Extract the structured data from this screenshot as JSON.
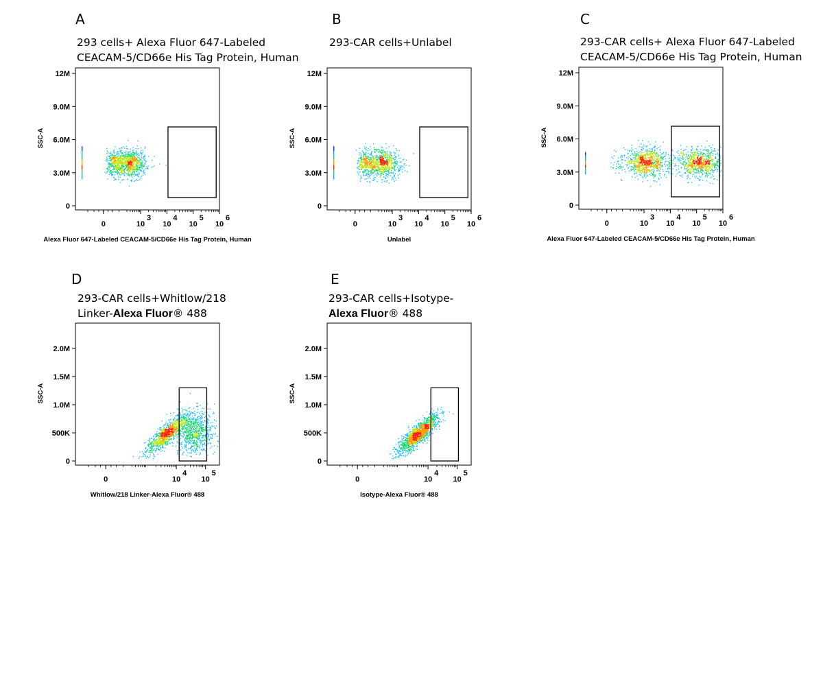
{
  "chart_data": [
    {
      "id": "A",
      "type": "scatter",
      "letter": "A",
      "title": [
        {
          "segments": [
            {
              "text": "293 cells+ Alexa Fluor 647-Labeled"
            }
          ]
        },
        {
          "segments": [
            {
              "text": "CEACAM-5/CD66e His Tag Protein, Human"
            }
          ]
        }
      ],
      "xlabel": "Alexa Fluor 647-Labeled CEACAM-5/CD66e His Tag Protein, Human",
      "ylabel": "SSC-A",
      "xscale": "biexponential",
      "xlim": [
        -300,
        1000000
      ],
      "ylim": [
        0,
        12500000
      ],
      "yticks": [
        {
          "value": 0,
          "label": "0"
        },
        {
          "value": 3000000,
          "label": "3.0M"
        },
        {
          "value": 6000000,
          "label": "6.0M"
        },
        {
          "value": 9000000,
          "label": "9.0M"
        },
        {
          "value": 12000000,
          "label": "12M"
        }
      ],
      "xticks": [
        {
          "value": 0,
          "label": "0",
          "exp": ""
        },
        {
          "value": 1000,
          "label": "10",
          "exp": "3"
        },
        {
          "value": 10000,
          "label": "10",
          "exp": "4"
        },
        {
          "value": 100000,
          "label": "10",
          "exp": "5"
        },
        {
          "value": 1000000,
          "label": "10",
          "exp": "6"
        }
      ],
      "gate": {
        "x": [
          11000,
          750000
        ],
        "y": [
          750000,
          7150000
        ]
      },
      "populations": [
        {
          "x_center": 300,
          "x_spread": 1.6,
          "y_center": 3850000,
          "y_spread": 600000,
          "count": 1100
        }
      ],
      "edge_events": {
        "x_at": 0,
        "y_range": [
          2400000,
          5400000
        ]
      }
    },
    {
      "id": "B",
      "type": "scatter",
      "letter": "B",
      "title": [
        {
          "segments": [
            {
              "text": "293-CAR cells+Unlabel"
            }
          ]
        }
      ],
      "xlabel": "Unlabel",
      "ylabel": "SSC-A",
      "xscale": "biexponential",
      "xlim": [
        -300,
        1000000
      ],
      "ylim": [
        0,
        12500000
      ],
      "yticks": [
        {
          "value": 0,
          "label": "0"
        },
        {
          "value": 3000000,
          "label": "3.0M"
        },
        {
          "value": 6000000,
          "label": "6.0M"
        },
        {
          "value": 9000000,
          "label": "9.0M"
        },
        {
          "value": 12000000,
          "label": "12M"
        }
      ],
      "xticks": [
        {
          "value": 0,
          "label": "0",
          "exp": ""
        },
        {
          "value": 1000,
          "label": "10",
          "exp": "3"
        },
        {
          "value": 10000,
          "label": "10",
          "exp": "4"
        },
        {
          "value": 100000,
          "label": "10",
          "exp": "5"
        },
        {
          "value": 1000000,
          "label": "10",
          "exp": "6"
        }
      ],
      "gate": {
        "x": [
          11000,
          750000
        ],
        "y": [
          750000,
          7150000
        ]
      },
      "populations": [
        {
          "x_center": 330,
          "x_spread": 1.7,
          "y_center": 3850000,
          "y_spread": 650000,
          "count": 1000
        }
      ],
      "edge_events": {
        "x_at": 0,
        "y_range": [
          2400000,
          5400000
        ]
      }
    },
    {
      "id": "C",
      "type": "scatter",
      "letter": "C",
      "title": [
        {
          "segments": [
            {
              "text": "293-CAR  cells+  Alexa  Fluor  647-Labeled"
            }
          ]
        },
        {
          "segments": [
            {
              "text": "CEACAM-5/CD66e His Tag Protein, Human"
            }
          ]
        }
      ],
      "xlabel": "Alexa Fluor 647-Labeled CEACAM-5/CD66e His Tag Protein, Human",
      "ylabel": "SSC-A",
      "xscale": "biexponential",
      "xlim": [
        -300,
        1000000
      ],
      "ylim": [
        0,
        12500000
      ],
      "yticks": [
        {
          "value": 0,
          "label": "0"
        },
        {
          "value": 3000000,
          "label": "3.0M"
        },
        {
          "value": 6000000,
          "label": "6.0M"
        },
        {
          "value": 9000000,
          "label": "9.0M"
        },
        {
          "value": 12000000,
          "label": "12M"
        }
      ],
      "xticks": [
        {
          "value": 0,
          "label": "0",
          "exp": ""
        },
        {
          "value": 1000,
          "label": "10",
          "exp": "3"
        },
        {
          "value": 10000,
          "label": "10",
          "exp": "4"
        },
        {
          "value": 100000,
          "label": "10",
          "exp": "5"
        },
        {
          "value": 1000000,
          "label": "10",
          "exp": "6"
        }
      ],
      "gate": {
        "x": [
          11000,
          750000
        ],
        "y": [
          750000,
          7150000
        ]
      },
      "populations": [
        {
          "x_center": 1200,
          "x_spread": 2.0,
          "y_center": 3900000,
          "y_spread": 650000,
          "count": 900
        },
        {
          "x_center": 130000,
          "x_spread": 1.9,
          "y_center": 3900000,
          "y_spread": 650000,
          "count": 800
        }
      ],
      "edge_events": {
        "x_at": 0,
        "y_range": [
          2800000,
          4800000
        ]
      }
    },
    {
      "id": "D",
      "type": "scatter",
      "letter": "D",
      "title": [
        {
          "segments": [
            {
              "text": "293-CAR  cells+Whitlow/218"
            }
          ]
        },
        {
          "segments": [
            {
              "text": "Linker-"
            },
            {
              "text": "Alexa Fluor",
              "bold": true
            },
            {
              "text": "® 488"
            }
          ]
        }
      ],
      "xlabel": "Whitlow/218 Linker-Alexa Fluor® 488",
      "ylabel": "SSC-A",
      "xscale": "biexponential",
      "xlim": [
        -300,
        300000
      ],
      "ylim": [
        0,
        2450000
      ],
      "yticks": [
        {
          "value": 0,
          "label": "0"
        },
        {
          "value": 500000,
          "label": "500K"
        },
        {
          "value": 1000000,
          "label": "1.0M"
        },
        {
          "value": 1500000,
          "label": "1.5M"
        },
        {
          "value": 2000000,
          "label": "2.0M"
        }
      ],
      "xticks": [
        {
          "value": 0,
          "label": "0",
          "exp": ""
        },
        {
          "value": 10000,
          "label": "10",
          "exp": "4"
        },
        {
          "value": 100000,
          "label": "10",
          "exp": "5"
        }
      ],
      "gate": {
        "x": [
          12500,
          110000
        ],
        "y": [
          0,
          1300000
        ]
      },
      "populations": [
        {
          "x_center": 4500,
          "x_spread": 1.6,
          "y_center": 480000,
          "y_spread": 170000,
          "count": 1000,
          "correlated": true
        },
        {
          "x_center": 42000,
          "x_spread": 1.6,
          "y_center": 520000,
          "y_spread": 180000,
          "count": 850
        }
      ]
    },
    {
      "id": "E",
      "type": "scatter",
      "letter": "E",
      "title": [
        {
          "segments": [
            {
              "text": "293-CAR  cells+Isotype-"
            }
          ]
        },
        {
          "segments": [
            {
              "text": "Alexa Fluor",
              "bold": true
            },
            {
              "text": "® 488"
            }
          ]
        }
      ],
      "xlabel": "Isotype-Alexa Fluor® 488",
      "ylabel": "SSC-A",
      "xscale": "biexponential",
      "xlim": [
        -300,
        300000
      ],
      "ylim": [
        0,
        2450000
      ],
      "yticks": [
        {
          "value": 0,
          "label": "0"
        },
        {
          "value": 500000,
          "label": "500K"
        },
        {
          "value": 1000000,
          "label": "1.0M"
        },
        {
          "value": 1500000,
          "label": "1.5M"
        },
        {
          "value": 2000000,
          "label": "2.0M"
        }
      ],
      "xticks": [
        {
          "value": 0,
          "label": "0",
          "exp": ""
        },
        {
          "value": 10000,
          "label": "10",
          "exp": "4"
        },
        {
          "value": 100000,
          "label": "10",
          "exp": "5"
        }
      ],
      "gate": {
        "x": [
          12500,
          110000
        ],
        "y": [
          0,
          1300000
        ]
      },
      "populations": [
        {
          "x_center": 4500,
          "x_spread": 1.6,
          "y_center": 480000,
          "y_spread": 170000,
          "count": 1400,
          "correlated": true
        }
      ]
    }
  ]
}
